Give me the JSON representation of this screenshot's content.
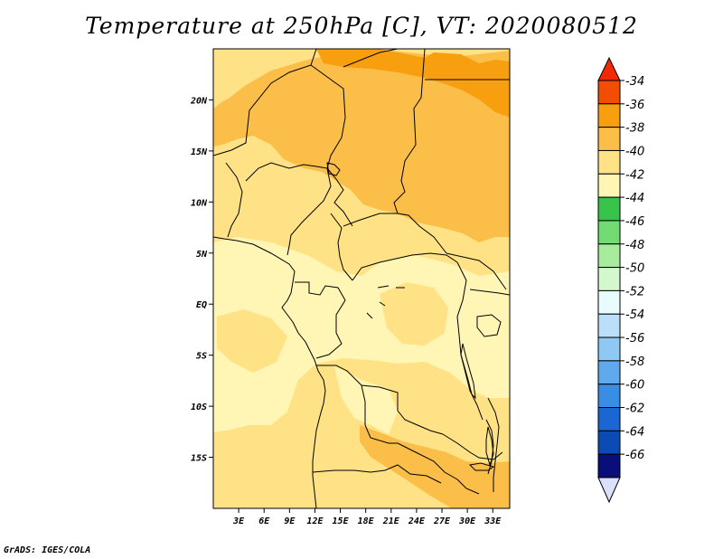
{
  "title": "Temperature at 250hPa [C], VT: 2020080512",
  "credit": "GrADS: IGES/COLA",
  "map": {
    "lon_range": [
      0,
      35
    ],
    "lat_range": [
      -20,
      25
    ],
    "lat_ticks": [
      "20N",
      "15N",
      "10N",
      "5N",
      "EQ",
      "5S",
      "10S",
      "15S"
    ],
    "lat_tick_values": [
      20,
      15,
      10,
      5,
      0,
      -5,
      -10,
      -15
    ],
    "lon_ticks": [
      "3E",
      "6E",
      "9E",
      "12E",
      "15E",
      "18E",
      "21E",
      "24E",
      "27E",
      "30E",
      "33E"
    ],
    "lon_tick_values": [
      3,
      6,
      9,
      12,
      15,
      18,
      21,
      24,
      27,
      30,
      33
    ],
    "field_colors": {
      "c42": "#fff5b4",
      "c40": "#ffe285",
      "c38": "#fbbf49",
      "c36": "#f79f0f"
    }
  },
  "colorbar": {
    "labels": [
      "-34",
      "-36",
      "-38",
      "-40",
      "-42",
      "-44",
      "-46",
      "-48",
      "-50",
      "-52",
      "-54",
      "-56",
      "-58",
      "-60",
      "-62",
      "-64",
      "-66"
    ],
    "colors": [
      "#f14d04",
      "#f79f0f",
      "#fbbf49",
      "#ffe285",
      "#fff5b4",
      "#38c44a",
      "#72dc72",
      "#a7ec9c",
      "#d3f8cd",
      "#e8fbfd",
      "#bcdff9",
      "#90c8f4",
      "#5fa9ec",
      "#3a8de5",
      "#1a67d4",
      "#0c4bb3",
      "#080f78"
    ],
    "top_triangle_color": "#f12a05",
    "bottom_triangle_color": "#dbe0fb"
  }
}
